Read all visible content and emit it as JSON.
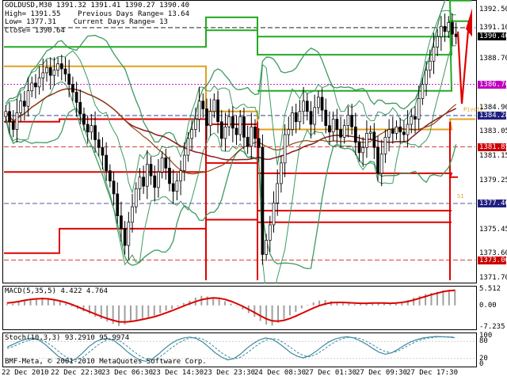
{
  "window": {
    "symbol_line": "GOLDUSD,M30  1391.32 1391.41 1390.27 1390.40",
    "high_line": "High= 1391.55",
    "low_line": "Low= 1377.31",
    "close_line": "Close= 1390.64",
    "prev_range": "Previous Days Range= 13.64",
    "curr_range": "Current Days Range= 13"
  },
  "copyright": "BMF-Meta, © 2001-2010 MetaQuotes Software Corp.",
  "chart_data": [
    {
      "type": "candlestick",
      "ylim": [
        1371.5,
        1393.0
      ],
      "yticks": [
        "1392.50",
        "1391.10",
        "1390.40",
        "1388.70",
        "1386.70",
        "1384.90",
        "1384.28",
        "1383.05",
        "1381.85",
        "1381.15",
        "1379.25",
        "1377.46",
        "1375.45",
        "1373.60",
        "1373.06",
        "1371.70"
      ],
      "yticks_values": [
        1392.5,
        1391.1,
        1390.4,
        1388.7,
        1386.7,
        1384.9,
        1384.28,
        1383.05,
        1381.85,
        1381.15,
        1379.25,
        1377.46,
        1375.45,
        1373.6,
        1373.06,
        1371.7
      ],
      "price_tags": [
        {
          "label": "1391.10",
          "value": 1391.1,
          "bg": "#ffffff",
          "fg": "#000000"
        },
        {
          "label": "1390.40",
          "value": 1390.4,
          "bg": "#000000",
          "fg": "#ffffff"
        },
        {
          "label": "1386.70",
          "value": 1386.7,
          "bg": "#c000c0",
          "fg": "#ffffff"
        },
        {
          "label": "1384.28",
          "value": 1384.28,
          "bg": "#202080",
          "fg": "#ffffff"
        },
        {
          "label": "1381.85",
          "value": 1381.85,
          "bg": "#cc0000",
          "fg": "#ffffff"
        },
        {
          "label": "1377.46",
          "value": 1377.46,
          "bg": "#202080",
          "fg": "#ffffff"
        },
        {
          "label": "1373.06",
          "value": 1373.06,
          "bg": "#cc0000",
          "fg": "#ffffff"
        }
      ],
      "xticks": [
        "22 Dec 2010",
        "22 Dec 22:30",
        "23 Dec 06:30",
        "23 Dec 14:30",
        "23 Dec 23:30",
        "24 Dec 08:30",
        "27 Dec 01:30",
        "27 Dec 09:30",
        "27 Dec 17:30"
      ],
      "annotations": [
        "PivotP",
        "S1"
      ],
      "colors": {
        "candles": "#000000",
        "bands": "#3c9a5f",
        "ma": "#8b1a1a",
        "brown": "#8b4513",
        "pivot_high": "#22aa22",
        "pivot_low": "#dd0000",
        "pivot_mid": "#e0a020",
        "arrow": "#dd0000"
      },
      "closes": [
        1384.6,
        1383.8,
        1383.2,
        1384.5,
        1385.4,
        1385.0,
        1386.2,
        1386.8,
        1386.5,
        1387.2,
        1387.6,
        1388.0,
        1387.4,
        1387.8,
        1388.3,
        1387.9,
        1387.5,
        1386.7,
        1386.1,
        1385.3,
        1384.4,
        1383.6,
        1383.0,
        1383.5,
        1382.4,
        1381.8,
        1381.2,
        1380.0,
        1379.2,
        1378.2,
        1376.5,
        1375.5,
        1374.2,
        1376.0,
        1377.2,
        1378.6,
        1379.5,
        1378.8,
        1380.5,
        1379.6,
        1378.7,
        1379.9,
        1381.0,
        1380.2,
        1379.0,
        1378.4,
        1379.2,
        1380.0,
        1381.2,
        1382.5,
        1383.2,
        1384.0,
        1385.4,
        1384.8,
        1383.5,
        1384.6,
        1385.5,
        1383.8,
        1382.5,
        1383.4,
        1384.2,
        1383.3,
        1382.8,
        1384.2,
        1382.6,
        1381.9,
        1383.4,
        1382.5,
        1381.8,
        1373.5,
        1374.6,
        1375.8,
        1377.5,
        1379.0,
        1380.6,
        1382.8,
        1383.2,
        1384.5,
        1383.8,
        1384.6,
        1385.4,
        1384.6,
        1383.6,
        1384.9,
        1385.7,
        1384.7,
        1383.5,
        1383.0,
        1384.0,
        1383.2,
        1382.6,
        1383.5,
        1384.3,
        1383.4,
        1382.2,
        1381.4,
        1381.8,
        1382.9,
        1383.0,
        1381.8,
        1379.8,
        1381.3,
        1382.6,
        1383.2,
        1382.9,
        1383.4,
        1383.0,
        1382.8,
        1383.6,
        1384.2,
        1384.0,
        1385.6,
        1386.7,
        1387.8,
        1388.5,
        1389.6,
        1390.4,
        1391.2,
        1390.8,
        1391.5,
        1390.6,
        1390.4
      ],
      "series": [
        {
          "name": "",
          "color": "#3c9a5f"
        },
        {
          "name": "",
          "color": "#8b1a1a"
        }
      ]
    },
    {
      "type": "line",
      "title": "MACD(5,35,5) 4.422 4.764",
      "ylim": [
        -7.235,
        5.512
      ],
      "yticks": [
        "5.512",
        "0.00",
        "-7.235"
      ],
      "yticks_values": [
        5.512,
        0.0,
        -7.235
      ],
      "histogram": [
        0.4,
        0.6,
        1.0,
        1.6,
        2.2,
        2.4,
        2.6,
        2.3,
        1.8,
        1.2,
        0.6,
        -0.4,
        -1.2,
        -2.0,
        -2.8,
        -3.8,
        -4.6,
        -5.4,
        -6.2,
        -6.9,
        -6.4,
        -5.6,
        -4.8,
        -4.4,
        -4.0,
        -3.4,
        -2.6,
        -1.8,
        -1.2,
        -0.4,
        0.8,
        1.6,
        2.6,
        3.2,
        3.0,
        2.6,
        2.2,
        1.4,
        0.6,
        -0.2,
        -1.4,
        -2.6,
        -3.8,
        -5.2,
        -6.4,
        -6.8,
        -5.8,
        -4.6,
        -3.4,
        -2.2,
        -1.0,
        0.2,
        1.0,
        1.6,
        1.8,
        1.4,
        1.0,
        0.8,
        0.6,
        0.4,
        0.4,
        0.6,
        1.0,
        1.0,
        0.6,
        0.4,
        0.8,
        1.2,
        1.8,
        2.6,
        3.2,
        3.8,
        4.2,
        4.6,
        5.0,
        5.2,
        5.3
      ],
      "signal": [
        0.8,
        1.0,
        1.3,
        1.7,
        2.0,
        2.2,
        2.3,
        2.2,
        1.9,
        1.5,
        1.0,
        0.3,
        -0.5,
        -1.3,
        -2.1,
        -2.9,
        -3.7,
        -4.4,
        -5.0,
        -5.5,
        -5.6,
        -5.4,
        -5.1,
        -4.7,
        -4.3,
        -3.8,
        -3.2,
        -2.5,
        -1.8,
        -1.0,
        -0.2,
        0.6,
        1.3,
        1.9,
        2.3,
        2.5,
        2.4,
        2.0,
        1.4,
        0.6,
        -0.3,
        -1.3,
        -2.4,
        -3.5,
        -4.5,
        -5.2,
        -5.3,
        -5.0,
        -4.4,
        -3.6,
        -2.7,
        -1.8,
        -0.9,
        -0.1,
        0.5,
        0.9,
        1.0,
        1.0,
        0.9,
        0.8,
        0.7,
        0.7,
        0.8,
        0.8,
        0.8,
        0.7,
        0.8,
        1.0,
        1.3,
        1.8,
        2.4,
        3.0,
        3.6,
        4.1,
        4.6,
        4.9,
        5.1
      ]
    },
    {
      "type": "line",
      "title": "Stoch(10,3,3) 93.2910 95.9974",
      "ylim": [
        0,
        100
      ],
      "yticks": [
        "100",
        "80",
        "20",
        "0"
      ],
      "yticks_values": [
        100,
        80,
        20,
        0
      ],
      "main": [
        60,
        70,
        80,
        88,
        92,
        85,
        70,
        50,
        30,
        15,
        8,
        20,
        40,
        62,
        78,
        88,
        90,
        82,
        65,
        45,
        28,
        15,
        10,
        18,
        35,
        55,
        72,
        85,
        92,
        95,
        90,
        78,
        60,
        40,
        25,
        15,
        20,
        35,
        55,
        72,
        85,
        92,
        88,
        75,
        58,
        40,
        28,
        22,
        30,
        45,
        62,
        78,
        88,
        94,
        96,
        92,
        82,
        70,
        55,
        42,
        35,
        40,
        52,
        66,
        78,
        86,
        92,
        95,
        97,
        96,
        95,
        93
      ],
      "signal": [
        55,
        62,
        72,
        80,
        88,
        88,
        80,
        66,
        48,
        30,
        18,
        15,
        24,
        42,
        60,
        76,
        86,
        88,
        80,
        64,
        46,
        30,
        18,
        14,
        22,
        38,
        56,
        72,
        84,
        92,
        94,
        88,
        76,
        58,
        40,
        26,
        18,
        24,
        38,
        56,
        72,
        84,
        90,
        86,
        74,
        58,
        42,
        30,
        26,
        34,
        48,
        64,
        78,
        88,
        94,
        94,
        90,
        80,
        68,
        54,
        44,
        40,
        46,
        58,
        70,
        80,
        88,
        92,
        95,
        96,
        96,
        95
      ]
    }
  ]
}
